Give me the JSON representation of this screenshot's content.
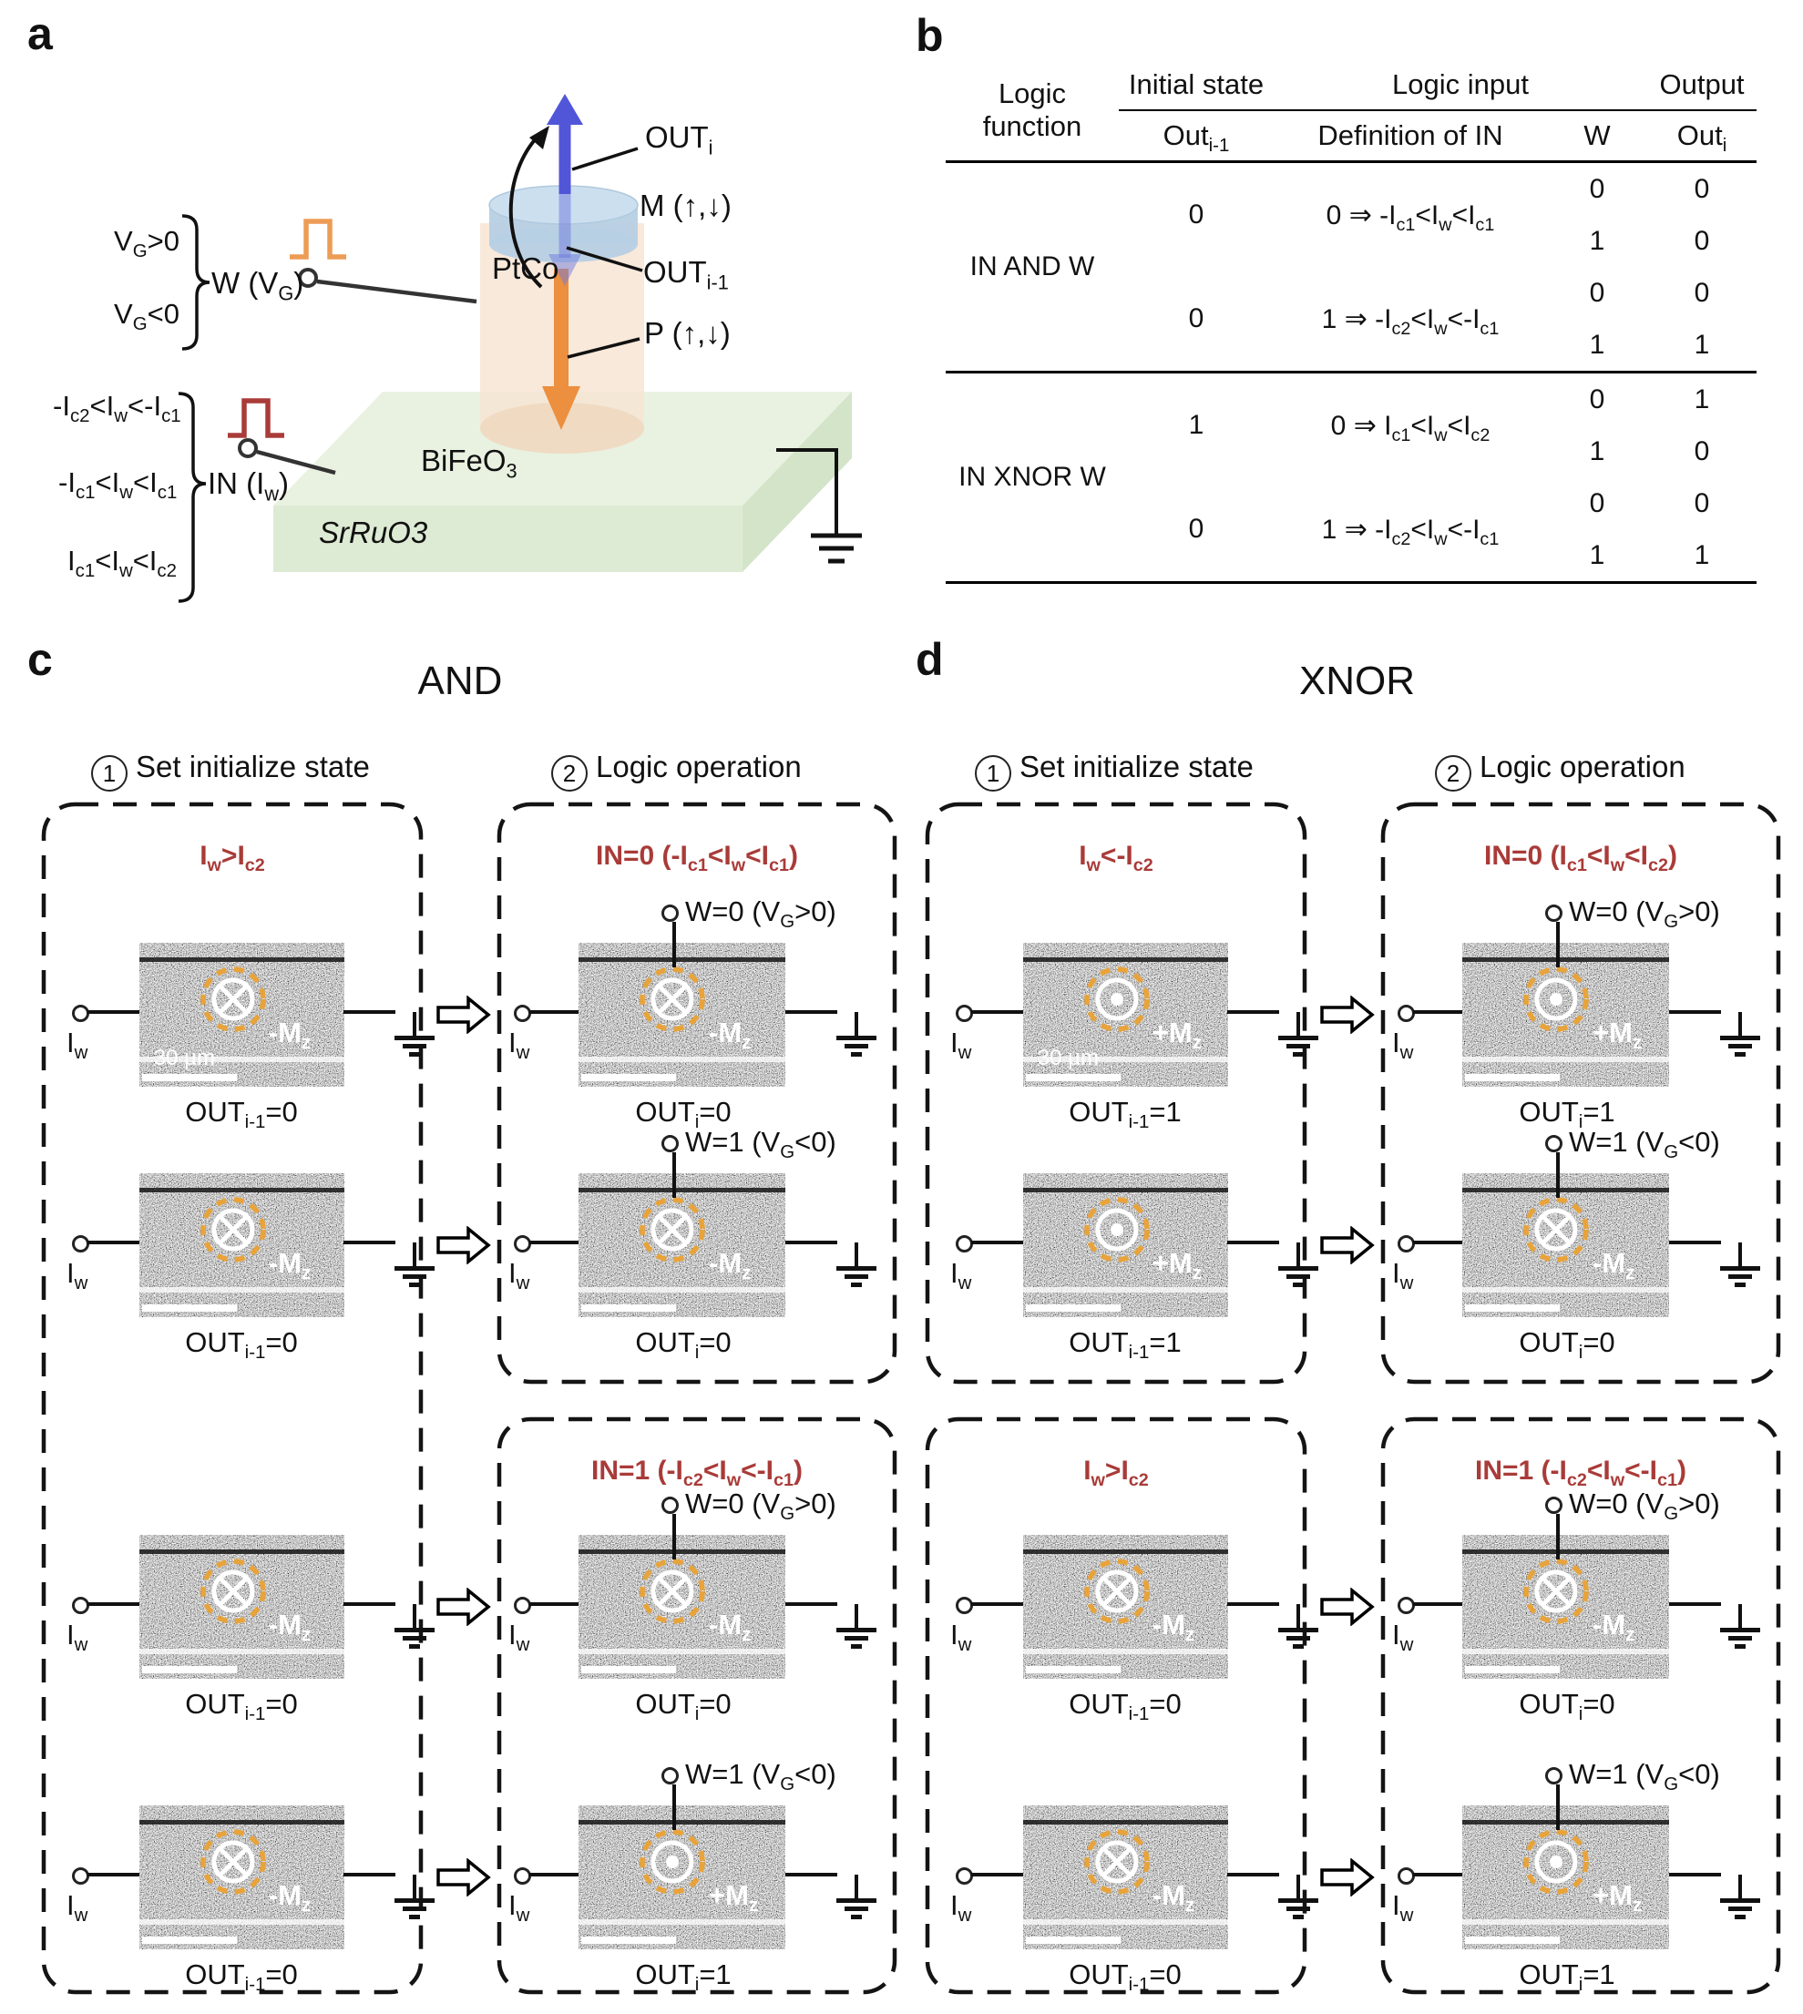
{
  "shared": {
    "iw": "I_{w}",
    "scale_bar": "30 µm"
  },
  "colors": {
    "red_text": "#A93B38",
    "write_pulse": "#ED9C55",
    "input_pulse": "#A93B38",
    "domain_ring": "#E8A33A",
    "m_arrow": "#5156D9",
    "p_arrow": "#EC8F3E"
  },
  "panel_a": {
    "label": "a",
    "gate": {
      "cond_pos": "V_{G}>0",
      "cond_neg": "V_{G}<0",
      "label": "W (V_{G})"
    },
    "input": {
      "cond_neg": "-I_{c2}<I_{w}<-I_{c1}",
      "cond_zero": "-I_{c1}<I_{w}<I_{c1}",
      "cond_pos": "I_{c1}<I_{w}<I_{c2}",
      "label": "IN (I_{w})"
    },
    "layers": {
      "top": "PtCo",
      "oxide": "BiFeO_{3}",
      "bottom": "SrRuO3"
    },
    "arrows": {
      "out_i": "OUT_{i}",
      "m": "M (↑,↓)",
      "out_prev": "OUT_{i-1}",
      "p": "P (↑,↓)"
    }
  },
  "panel_b": {
    "label": "b",
    "table": {
      "group_headers": {
        "logic_function": "Logic function",
        "initial_state": "Initial state",
        "logic_input": "Logic input",
        "output": "Output"
      },
      "sub_headers": {
        "out_prev": "Out_{i-1}",
        "definition": "Definition of IN",
        "w": "W",
        "out_i": "Out_{i}"
      },
      "functions": [
        {
          "name": "IN AND W",
          "groups": [
            {
              "out_prev": "0",
              "definition": "0 ⇒ -I_{c1}<I_{w}<I_{c1}",
              "rows": [
                {
                  "w": "0",
                  "out": "0"
                },
                {
                  "w": "1",
                  "out": "0"
                }
              ]
            },
            {
              "out_prev": "0",
              "definition": "1 ⇒ -I_{c2}<I_{w}<-I_{c1}",
              "rows": [
                {
                  "w": "0",
                  "out": "0"
                },
                {
                  "w": "1",
                  "out": "1"
                }
              ]
            }
          ]
        },
        {
          "name": "IN XNOR W",
          "groups": [
            {
              "out_prev": "1",
              "definition": "0 ⇒  I_{c1}<I_{w}<I_{c2}",
              "rows": [
                {
                  "w": "0",
                  "out": "1"
                },
                {
                  "w": "1",
                  "out": "0"
                }
              ]
            },
            {
              "out_prev": "0",
              "definition": "1 ⇒ -I_{c2}<I_{w}<-I_{c1}",
              "rows": [
                {
                  "w": "0",
                  "out": "0"
                },
                {
                  "w": "1",
                  "out": "1"
                }
              ]
            }
          ]
        }
      ]
    }
  },
  "panel_c": {
    "label": "c",
    "title": "AND",
    "step1_num": "1",
    "step1_label": "Set initialize state",
    "step2_num": "2",
    "step2_label": "Logic operation",
    "init_boxes": [
      {
        "header": "I_{w}>I_{c2}",
        "cells": [
          {
            "caption": "OUT_{i-1}=0",
            "mz": "-M_{z}",
            "symbol": "cross",
            "scale_text": "30 µm"
          },
          {
            "caption": "OUT_{i-1}=0",
            "mz": "-M_{z}",
            "symbol": "cross"
          },
          {
            "caption": "OUT_{i-1}=0",
            "mz": "-M_{z}",
            "symbol": "cross"
          },
          {
            "caption": "OUT_{i-1}=0",
            "mz": "-M_{z}",
            "symbol": "cross"
          }
        ]
      }
    ],
    "logic_boxes": [
      {
        "header": "IN=0 (-I_{c1}<I_{w}<I_{c1})",
        "cells": [
          {
            "w_label": "W=0 (V_{G}>0)",
            "mz": "-M_{z}",
            "symbol": "cross",
            "caption": "OUT_{i}=0"
          },
          {
            "w_label": "W=1 (V_{G}<0)",
            "mz": "-M_{z}",
            "symbol": "cross",
            "caption": "OUT_{i}=0"
          }
        ]
      },
      {
        "header": "IN=1 (-I_{c2}<I_{w}<-I_{c1})",
        "cells": [
          {
            "w_label": "W=0 (V_{G}>0)",
            "mz": "-M_{z}",
            "symbol": "cross",
            "caption": "OUT_{i}=0"
          },
          {
            "w_label": "W=1 (V_{G}<0)",
            "mz": "+M_{z}",
            "symbol": "dot",
            "caption": "OUT_{i}=1"
          }
        ]
      }
    ]
  },
  "panel_d": {
    "label": "d",
    "title": "XNOR",
    "step1_num": "1",
    "step1_label": "Set initialize state",
    "step2_num": "2",
    "step2_label": "Logic operation",
    "init_boxes": [
      {
        "header": "I_{w}<-I_{c2}",
        "cells": [
          {
            "caption": "OUT_{i-1}=1",
            "mz": "+M_{z}",
            "symbol": "dot",
            "scale_text": "30 µm"
          },
          {
            "caption": "OUT_{i-1}=1",
            "mz": "+M_{z}",
            "symbol": "dot"
          }
        ]
      },
      {
        "header": "I_{w}>I_{c2}",
        "cells": [
          {
            "caption": "OUT_{i-1}=0",
            "mz": "-M_{z}",
            "symbol": "cross"
          },
          {
            "caption": "OUT_{i-1}=0",
            "mz": "-M_{z}",
            "symbol": "cross"
          }
        ]
      }
    ],
    "logic_boxes": [
      {
        "header": "IN=0 (I_{c1}<I_{w}<I_{c2})",
        "cells": [
          {
            "w_label": "W=0 (V_{G}>0)",
            "mz": "+M_{z}",
            "symbol": "dot",
            "caption": "OUT_{i}=1"
          },
          {
            "w_label": "W=1 (V_{G}<0)",
            "mz": "-M_{z}",
            "symbol": "cross",
            "caption": "OUT_{i}=0"
          }
        ]
      },
      {
        "header": "IN=1 (-I_{c2}<I_{w}<-I_{c1})",
        "cells": [
          {
            "w_label": "W=0 (V_{G}>0)",
            "mz": "-M_{z}",
            "symbol": "cross",
            "caption": "OUT_{i}=0"
          },
          {
            "w_label": "W=1 (V_{G}<0)",
            "mz": "+M_{z}",
            "symbol": "dot",
            "caption": "OUT_{i}=1"
          }
        ]
      }
    ]
  }
}
